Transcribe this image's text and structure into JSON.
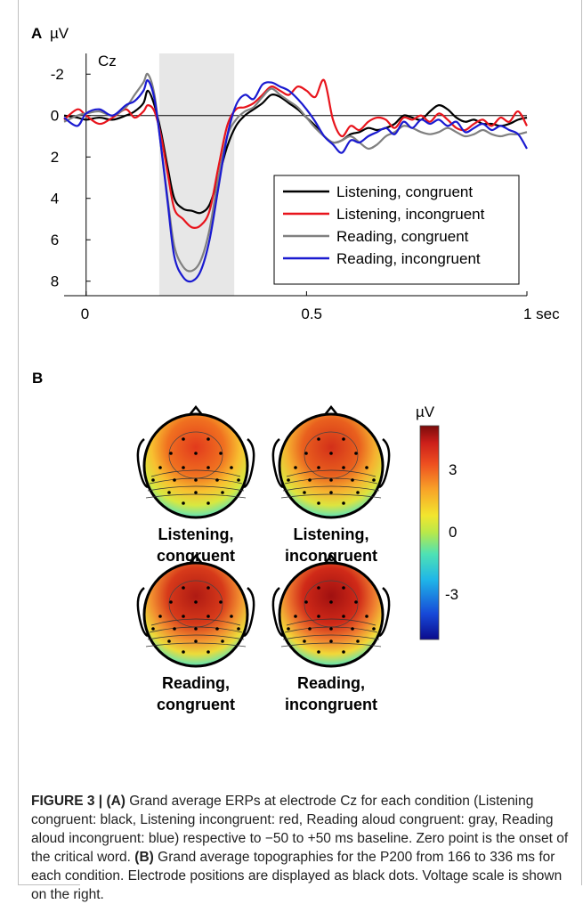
{
  "panel_a": {
    "label": "A",
    "unit": "µV",
    "electrode": "Cz",
    "x_tick_labels": [
      "0",
      "0.5",
      "1 sec"
    ],
    "y_tick_labels": [
      "-2",
      "0",
      "2",
      "4",
      "6",
      "8"
    ]
  },
  "panel_b": {
    "label": "B",
    "colorbar": {
      "unit": "µV",
      "tick_labels": [
        "3",
        "0",
        "-3"
      ],
      "range": [
        -4,
        4
      ]
    },
    "maps": [
      {
        "line1": "Listening,",
        "line2": "congruent",
        "peak_uv": 3.0
      },
      {
        "line1": "Listening,",
        "line2": "incongruent",
        "peak_uv": 3.3
      },
      {
        "line1": "Reading,",
        "line2": "congruent",
        "peak_uv": 4.0
      },
      {
        "line1": "Reading,",
        "line2": "incongruent",
        "peak_uv": 4.3
      }
    ]
  },
  "caption": {
    "figure_label": "FIGURE 3 |",
    "part_a_label": "(A)",
    "part_a_text": " Grand average ERPs at electrode Cz for each condition (Listening congruent: black, Listening incongruent: red, Reading aloud congruent: gray, Reading aloud incongruent: blue) respective to −50 to +50 ms baseline. Zero point is the onset of the critical word. ",
    "part_b_label": "(B)",
    "part_b_text": " Grand average topographies for the P200 from 166 to 336 ms for each condition. Electrode positions are displayed as black dots. Voltage scale is shown on the right."
  },
  "chart_data": {
    "type": "line",
    "xlabel": "sec",
    "ylabel": "µV",
    "xlim": [
      -0.05,
      1.0
    ],
    "ylim": [
      8.7,
      -3.0
    ],
    "y_inverted": true,
    "x_ticks": [
      0,
      0.5,
      1
    ],
    "y_ticks": [
      -2,
      0,
      2,
      4,
      6,
      8
    ],
    "shaded_window": [
      0.166,
      0.336
    ],
    "legend_position": "lower-right",
    "series": [
      {
        "name": "Listening, congruent",
        "color": "#000000",
        "x": [
          -0.05,
          -0.02,
          0,
          0.03,
          0.06,
          0.09,
          0.11,
          0.13,
          0.14,
          0.155,
          0.17,
          0.185,
          0.2,
          0.22,
          0.24,
          0.26,
          0.28,
          0.3,
          0.32,
          0.34,
          0.36,
          0.38,
          0.4,
          0.42,
          0.44,
          0.46,
          0.48,
          0.5,
          0.52,
          0.54,
          0.56,
          0.58,
          0.6,
          0.62,
          0.64,
          0.66,
          0.68,
          0.7,
          0.72,
          0.74,
          0.76,
          0.78,
          0.8,
          0.82,
          0.84,
          0.86,
          0.88,
          0.9,
          0.92,
          0.94,
          0.96,
          0.98,
          1.0
        ],
        "y": [
          0.0,
          0.1,
          0.2,
          0.1,
          0.2,
          0.0,
          -0.2,
          -0.6,
          -1.2,
          -0.5,
          0.8,
          2.5,
          4.0,
          4.5,
          4.6,
          4.7,
          4.3,
          3.0,
          1.5,
          0.5,
          0.0,
          -0.3,
          -0.6,
          -1.0,
          -0.9,
          -0.6,
          -0.3,
          0.1,
          0.5,
          1.0,
          1.3,
          1.2,
          0.9,
          0.8,
          0.6,
          0.7,
          0.6,
          0.4,
          0.0,
          0.1,
          0.2,
          -0.2,
          -0.5,
          -0.3,
          0.1,
          0.3,
          0.2,
          0.4,
          0.4,
          0.5,
          0.4,
          0.2,
          0.1
        ]
      },
      {
        "name": "Listening, incongruent",
        "color": "#e8141c",
        "x": [
          -0.05,
          -0.02,
          0,
          0.03,
          0.06,
          0.09,
          0.11,
          0.13,
          0.14,
          0.155,
          0.17,
          0.185,
          0.2,
          0.22,
          0.24,
          0.26,
          0.28,
          0.3,
          0.32,
          0.34,
          0.36,
          0.38,
          0.4,
          0.42,
          0.44,
          0.46,
          0.48,
          0.5,
          0.52,
          0.54,
          0.56,
          0.58,
          0.6,
          0.62,
          0.64,
          0.66,
          0.68,
          0.7,
          0.72,
          0.74,
          0.76,
          0.78,
          0.8,
          0.82,
          0.84,
          0.86,
          0.88,
          0.9,
          0.92,
          0.94,
          0.96,
          0.98,
          1.0
        ],
        "y": [
          0.2,
          -0.3,
          0.0,
          0.4,
          0.1,
          -0.3,
          0.1,
          -0.2,
          -0.5,
          -0.2,
          1.0,
          2.8,
          4.5,
          5.0,
          5.4,
          5.3,
          4.6,
          2.5,
          0.5,
          -0.3,
          -0.4,
          -0.6,
          -1.0,
          -1.4,
          -1.2,
          -1.0,
          -1.4,
          -1.2,
          -0.9,
          -1.7,
          0.2,
          1.0,
          0.5,
          0.7,
          0.3,
          0.1,
          0.2,
          0.6,
          0.1,
          0.2,
          0.0,
          0.3,
          -0.1,
          0.2,
          0.6,
          0.7,
          0.4,
          0.2,
          0.5,
          0.1,
          0.3,
          -0.2,
          0.5
        ]
      },
      {
        "name": "Reading, congruent",
        "color": "#808080",
        "x": [
          -0.05,
          -0.02,
          0,
          0.03,
          0.06,
          0.09,
          0.11,
          0.13,
          0.14,
          0.155,
          0.17,
          0.185,
          0.2,
          0.22,
          0.24,
          0.26,
          0.28,
          0.3,
          0.32,
          0.34,
          0.36,
          0.38,
          0.4,
          0.42,
          0.44,
          0.46,
          0.48,
          0.5,
          0.52,
          0.54,
          0.56,
          0.58,
          0.6,
          0.62,
          0.64,
          0.66,
          0.68,
          0.7,
          0.72,
          0.74,
          0.76,
          0.78,
          0.8,
          0.82,
          0.84,
          0.86,
          0.88,
          0.9,
          0.92,
          0.94,
          0.96,
          0.98,
          1.0
        ],
        "y": [
          0.3,
          0.0,
          -0.1,
          -0.2,
          0.0,
          -0.4,
          -1.0,
          -1.6,
          -2.0,
          -1.0,
          1.5,
          4.0,
          6.3,
          7.3,
          7.5,
          7.0,
          5.5,
          3.0,
          1.0,
          0.2,
          -0.2,
          -0.4,
          -0.9,
          -1.3,
          -1.0,
          -0.7,
          -0.4,
          0.1,
          0.6,
          1.0,
          1.3,
          1.2,
          1.0,
          1.3,
          1.6,
          1.4,
          1.0,
          0.8,
          0.5,
          0.6,
          0.8,
          0.9,
          0.8,
          0.6,
          0.8,
          1.0,
          0.9,
          0.7,
          0.9,
          1.0,
          0.9,
          0.9,
          0.8
        ]
      },
      {
        "name": "Reading, incongruent",
        "color": "#1a1ad0",
        "x": [
          -0.05,
          -0.02,
          0,
          0.03,
          0.06,
          0.09,
          0.11,
          0.13,
          0.14,
          0.155,
          0.17,
          0.185,
          0.2,
          0.22,
          0.24,
          0.26,
          0.28,
          0.3,
          0.32,
          0.34,
          0.36,
          0.38,
          0.4,
          0.42,
          0.44,
          0.46,
          0.48,
          0.5,
          0.52,
          0.54,
          0.56,
          0.58,
          0.6,
          0.62,
          0.64,
          0.66,
          0.68,
          0.7,
          0.72,
          0.74,
          0.76,
          0.78,
          0.8,
          0.82,
          0.84,
          0.86,
          0.88,
          0.9,
          0.92,
          0.94,
          0.96,
          0.98,
          1.0
        ],
        "y": [
          0.1,
          0.5,
          -0.1,
          -0.3,
          0.0,
          -0.5,
          -0.7,
          -1.2,
          -1.7,
          -0.8,
          1.5,
          4.2,
          6.8,
          7.8,
          8.0,
          7.5,
          6.0,
          3.5,
          1.0,
          -0.5,
          -1.0,
          -0.8,
          -1.5,
          -1.6,
          -1.4,
          -1.2,
          -0.8,
          -0.3,
          0.3,
          1.0,
          1.4,
          1.8,
          1.2,
          1.3,
          1.0,
          0.8,
          0.6,
          0.9,
          0.3,
          0.6,
          0.2,
          0.4,
          0.2,
          0.5,
          0.3,
          0.8,
          0.6,
          0.4,
          0.7,
          0.5,
          0.7,
          0.9,
          1.6
        ]
      }
    ]
  }
}
